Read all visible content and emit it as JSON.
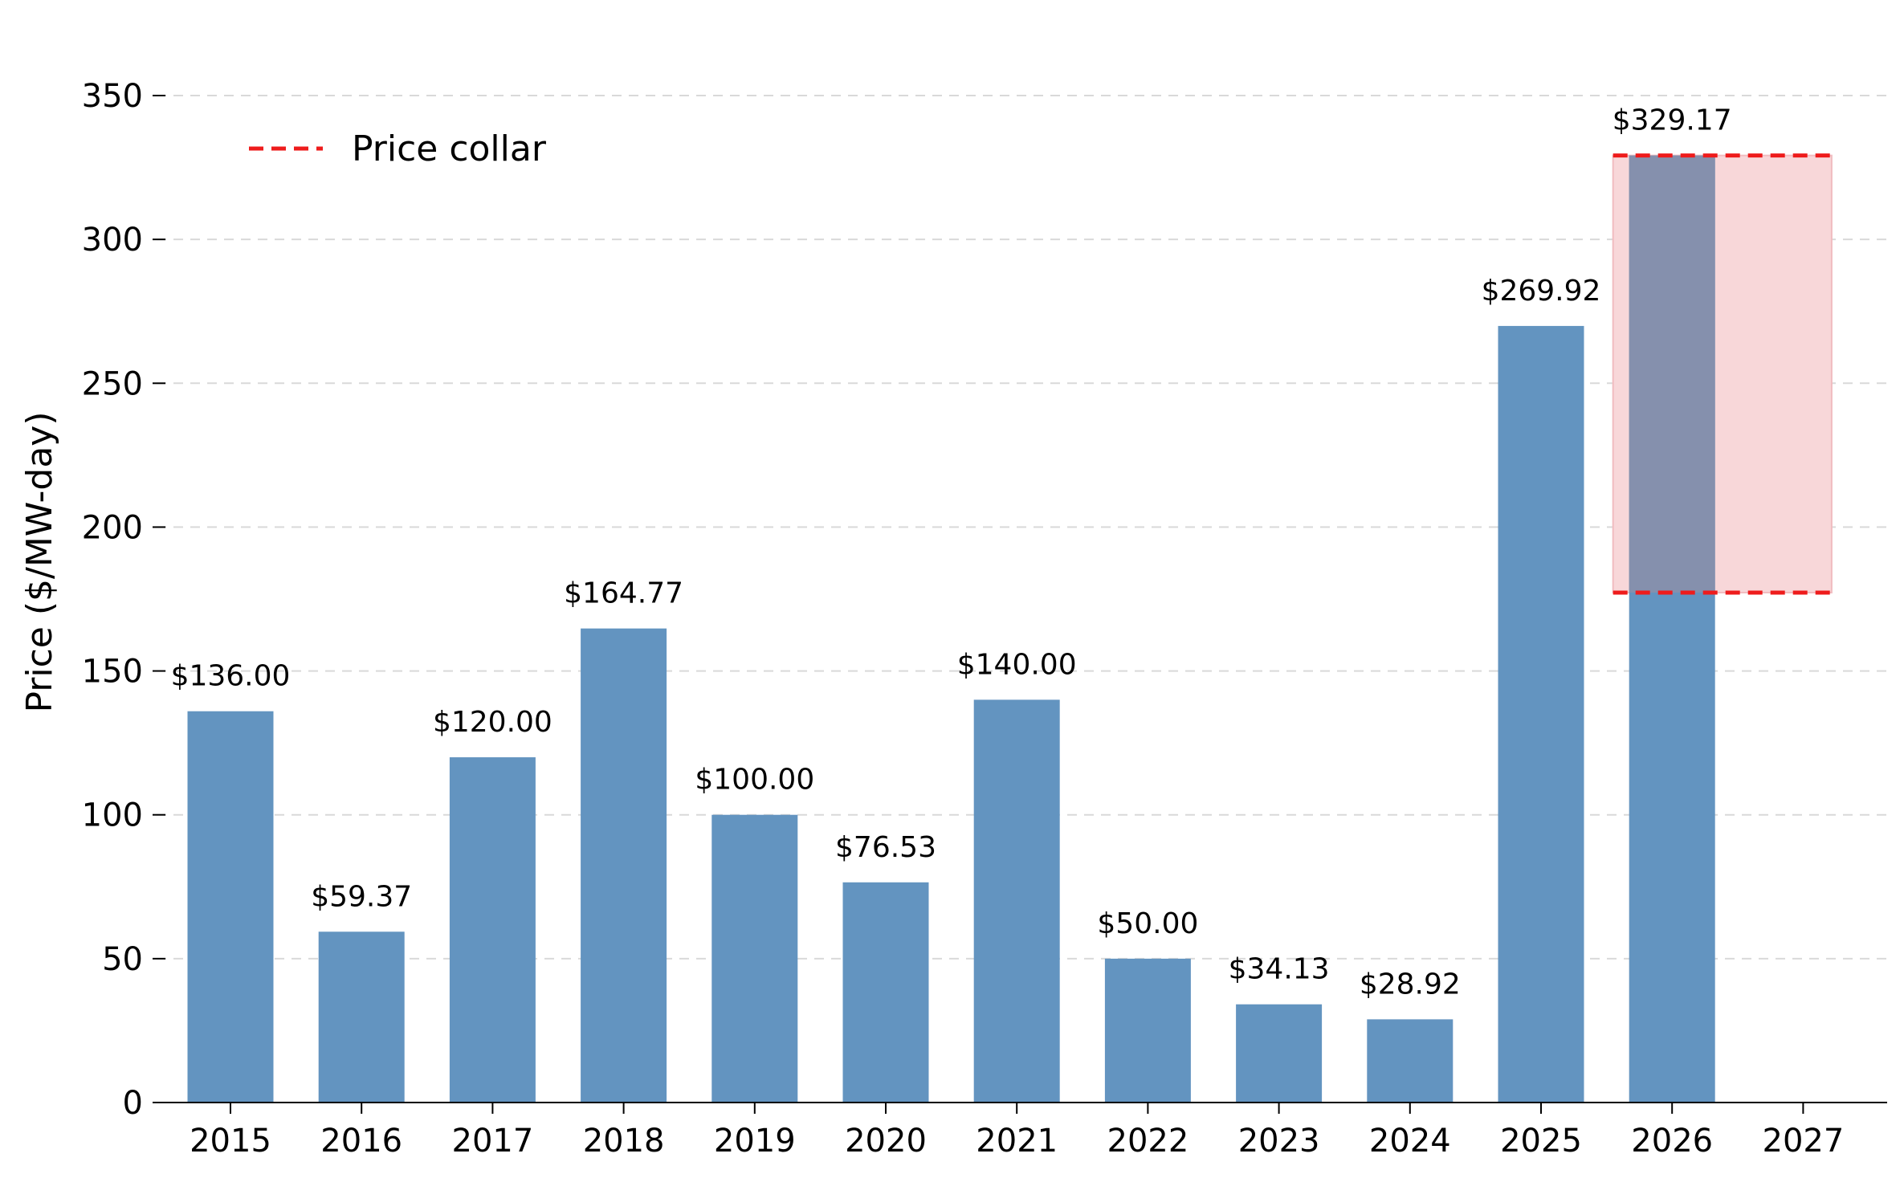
{
  "chart_data": {
    "type": "bar",
    "title": "",
    "xlabel": "",
    "ylabel": "Price ($/MW-day)",
    "categories": [
      "2015",
      "2016",
      "2017",
      "2018",
      "2019",
      "2020",
      "2021",
      "2022",
      "2023",
      "2024",
      "2025",
      "2026",
      "2027"
    ],
    "values": [
      136.0,
      59.37,
      120.0,
      164.77,
      100.0,
      76.53,
      140.0,
      50.0,
      34.13,
      28.92,
      269.92,
      329.17,
      null
    ],
    "data_labels": [
      "$136.00",
      "$59.37",
      "$120.00",
      "$164.77",
      "$100.00",
      "$76.53",
      "$140.00",
      "$50.00",
      "$34.13",
      "$28.92",
      "$269.92",
      "$329.17",
      ""
    ],
    "ylim": [
      0,
      350
    ],
    "yticks": [
      0,
      50,
      100,
      150,
      200,
      250,
      300,
      350
    ],
    "grid": "horizontal dashed",
    "bar_color": "#6394c0",
    "price_collar": {
      "legend_label": "Price collar",
      "from_category": "2026",
      "to_category": "2027",
      "upper": 329.17,
      "lower": 177.24,
      "line_color": "#ee1c1c",
      "fill_color": "#f8d7d9"
    },
    "legend_position": "top-left"
  }
}
